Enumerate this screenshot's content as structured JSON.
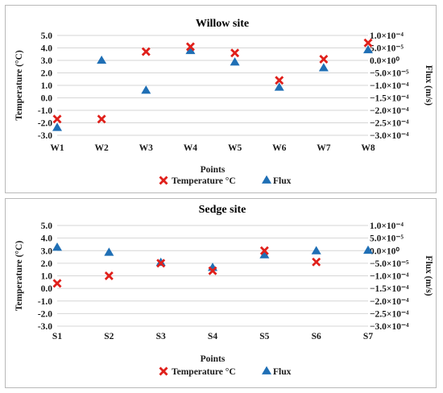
{
  "chart_data": [
    {
      "type": "scatter",
      "title": "Willow site",
      "xlabel": "Points",
      "ylabel": "Temperature (°C)",
      "y2label": "Flux (m/s)",
      "categories": [
        "W1",
        "W2",
        "W3",
        "W4",
        "W5",
        "W6",
        "W7",
        "W8"
      ],
      "ylim": [
        -3.0,
        5.0
      ],
      "yticks": [
        "5.0",
        "4.0",
        "3.0",
        "2.0",
        "1.0",
        "0.0",
        "-1.0",
        "-2.0",
        "-3.0"
      ],
      "y2lim": [
        -0.0003,
        0.0001
      ],
      "y2ticks": [
        "1.0×10⁻⁴",
        "5.0×10⁻⁵",
        "0.0×10⁰",
        "−5.0×10⁻⁵",
        "−1.0×10⁻⁴",
        "−1.5×10⁻⁴",
        "−2.0×10⁻⁴",
        "−2.5×10⁻⁴",
        "−3.0×10⁻⁴"
      ],
      "grid": true,
      "legend_position": "bottom",
      "series": [
        {
          "name": "Temperature °C",
          "axis": "left",
          "marker": "x",
          "color": "#e0201b",
          "values": [
            -1.7,
            -1.7,
            3.7,
            4.1,
            3.6,
            1.4,
            3.1,
            4.4
          ]
        },
        {
          "name": "Flux",
          "axis": "right",
          "marker": "triangle",
          "color": "#1f6fb5",
          "values": [
            -0.00027,
            -1e-06,
            -0.000121,
            3.8e-05,
            -8e-06,
            -0.000109,
            -3.1e-05,
            4.1e-05
          ]
        }
      ]
    },
    {
      "type": "scatter",
      "title": "Sedge site",
      "xlabel": "Points",
      "ylabel": "Temperature (°C)",
      "y2label": "Flux (m/s)",
      "categories": [
        "S1",
        "S2",
        "S3",
        "S4",
        "S5",
        "S6",
        "S7"
      ],
      "ylim": [
        -3.0,
        5.0
      ],
      "yticks": [
        "5.0",
        "4.0",
        "3.0",
        "2.0",
        "1.0",
        "0.0",
        "-1.0",
        "-2.0",
        "-3.0"
      ],
      "y2lim": [
        -0.0003,
        0.0001
      ],
      "y2ticks": [
        "1.0×10⁻⁴",
        "5.0×10⁻⁵",
        "0.0×10⁰",
        "−5.0×10⁻⁵",
        "−1.0×10⁻⁴",
        "−1.5×10⁻⁴",
        "−2.0×10⁻⁴",
        "−2.5×10⁻⁴",
        "−3.0×10⁻⁴"
      ],
      "grid": true,
      "legend_position": "bottom",
      "series": [
        {
          "name": "Temperature °C",
          "axis": "left",
          "marker": "x",
          "color": "#e0201b",
          "values": [
            0.4,
            1.0,
            2.0,
            1.4,
            3.0,
            2.1,
            null
          ]
        },
        {
          "name": "Flux",
          "axis": "right",
          "marker": "triangle",
          "color": "#1f6fb5",
          "values": [
            1.2e-05,
            -8e-06,
            -4.8e-05,
            -6.8e-05,
            -1.8e-05,
            -2e-06,
            0.0
          ]
        }
      ]
    }
  ]
}
